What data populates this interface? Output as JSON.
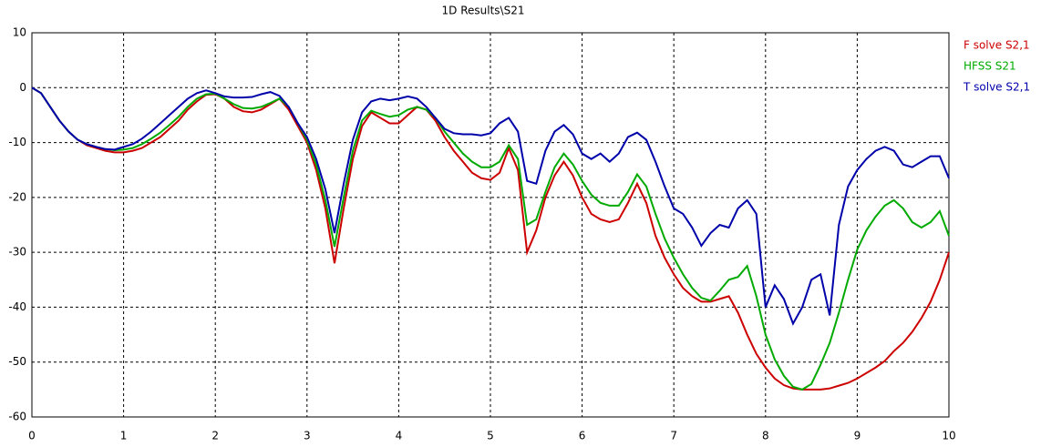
{
  "chart_data": {
    "type": "line",
    "title": "1D Results\\S21",
    "x": [
      0,
      0.1,
      0.2,
      0.3,
      0.4,
      0.5,
      0.6,
      0.7,
      0.8,
      0.9,
      1,
      1.1,
      1.2,
      1.3,
      1.4,
      1.5,
      1.6,
      1.7,
      1.8,
      1.9,
      2,
      2.1,
      2.2,
      2.3,
      2.4,
      2.5,
      2.6,
      2.7,
      2.8,
      2.9,
      3,
      3.1,
      3.2,
      3.3,
      3.4,
      3.5,
      3.6,
      3.7,
      3.8,
      3.9,
      4,
      4.1,
      4.2,
      4.3,
      4.4,
      4.5,
      4.6,
      4.7,
      4.8,
      4.9,
      5,
      5.1,
      5.2,
      5.3,
      5.4,
      5.5,
      5.6,
      5.7,
      5.8,
      5.9,
      6,
      6.1,
      6.2,
      6.3,
      6.4,
      6.5,
      6.6,
      6.7,
      6.8,
      6.9,
      7,
      7.1,
      7.2,
      7.3,
      7.4,
      7.5,
      7.6,
      7.7,
      7.8,
      7.9,
      8,
      8.1,
      8.2,
      8.3,
      8.4,
      8.5,
      8.6,
      8.7,
      8.8,
      8.9,
      9,
      9.1,
      9.2,
      9.3,
      9.4,
      9.5,
      9.6,
      9.7,
      9.8,
      9.9,
      10
    ],
    "series": [
      {
        "name": "F solve S2,1",
        "color": "#cc0000",
        "values": [
          0,
          -1,
          -3.5,
          -6,
          -8,
          -9.5,
          -10.5,
          -11,
          -11.5,
          -11.8,
          -11.8,
          -11.5,
          -11,
          -10,
          -9,
          -7.5,
          -6,
          -4,
          -2.5,
          -1.3,
          -1.2,
          -2,
          -3.5,
          -4.3,
          -4.5,
          -4,
          -3,
          -2,
          -4,
          -7,
          -10,
          -15,
          -22,
          -32,
          -22,
          -13,
          -7,
          -4.5,
          -5.5,
          -6.5,
          -6.5,
          -5,
          -3.5,
          -4,
          -6,
          -9,
          -11.5,
          -13.5,
          -15.5,
          -16.5,
          -16.8,
          -15.5,
          -11,
          -15,
          -30,
          -26,
          -20,
          -16,
          -13.5,
          -16,
          -20,
          -23,
          -24,
          -24.5,
          -24,
          -21,
          -17.5,
          -21,
          -27,
          -31,
          -34,
          -36.5,
          -38,
          -39,
          -39,
          -38.5,
          -38,
          -41,
          -45,
          -48.5,
          -51,
          -53,
          -54.2,
          -54.8,
          -55,
          -55,
          -55,
          -54.8,
          -54.3,
          -53.8,
          -53,
          -52,
          -51,
          -49.8,
          -48,
          -46.5,
          -44.5,
          -42,
          -39,
          -35,
          -30
        ]
      },
      {
        "name": "HFSS S21",
        "color": "#00aa00",
        "values": [
          0,
          -1,
          -3.5,
          -6,
          -8,
          -9.5,
          -10.3,
          -10.8,
          -11.2,
          -11.4,
          -11.3,
          -11,
          -10.3,
          -9.3,
          -8.2,
          -6.8,
          -5.3,
          -3.5,
          -2,
          -1.2,
          -1.1,
          -2,
          -3,
          -3.7,
          -3.8,
          -3.5,
          -2.8,
          -2,
          -3.5,
          -6.5,
          -9.5,
          -14,
          -20.5,
          -29,
          -20,
          -11.5,
          -6,
          -4.2,
          -4.8,
          -5.3,
          -5,
          -4,
          -3.5,
          -4,
          -5.5,
          -8,
          -10,
          -12,
          -13.5,
          -14.5,
          -14.5,
          -13.5,
          -10.5,
          -13,
          -25,
          -24,
          -19,
          -14.5,
          -12,
          -14,
          -17,
          -19.5,
          -21,
          -21.5,
          -21.5,
          -19,
          -15.8,
          -18,
          -23,
          -27.5,
          -31,
          -34,
          -36.5,
          -38.3,
          -38.8,
          -37,
          -35,
          -34.5,
          -32.5,
          -38,
          -45,
          -49.5,
          -52.5,
          -54.5,
          -55,
          -54,
          -50.5,
          -46.5,
          -41,
          -35,
          -29.5,
          -26,
          -23.5,
          -21.5,
          -20.5,
          -22,
          -24.5,
          -25.5,
          -24.5,
          -22.5,
          -27
        ]
      },
      {
        "name": "T solve S2,1",
        "color": "#0000aa",
        "values": [
          0,
          -1,
          -3.5,
          -6,
          -8,
          -9.5,
          -10.3,
          -10.8,
          -11.2,
          -11.3,
          -10.8,
          -10.3,
          -9.3,
          -8,
          -6.5,
          -5,
          -3.5,
          -2,
          -1,
          -0.5,
          -1,
          -1.6,
          -1.8,
          -1.8,
          -1.7,
          -1.2,
          -0.8,
          -1.5,
          -3.5,
          -6.5,
          -9,
          -13,
          -18.5,
          -26.5,
          -17.5,
          -9.5,
          -4.5,
          -2.5,
          -2,
          -2.3,
          -2,
          -1.6,
          -2,
          -3.5,
          -5.5,
          -7.5,
          -8.3,
          -8.5,
          -8.5,
          -8.7,
          -8.3,
          -6.5,
          -5.5,
          -8,
          -17,
          -17.5,
          -11.5,
          -8,
          -6.8,
          -8.5,
          -12,
          -13,
          -12,
          -13.5,
          -12,
          -9,
          -8.2,
          -9.5,
          -13.5,
          -18,
          -22,
          -23,
          -25.5,
          -28.8,
          -26.5,
          -25,
          -25.5,
          -22,
          -20.5,
          -23,
          -40,
          -36,
          -38.5,
          -43,
          -40,
          -35,
          -34,
          -41.5,
          -25,
          -18,
          -15,
          -13,
          -11.5,
          -10.8,
          -11.5,
          -14,
          -14.5,
          -13.5,
          -12.5,
          -12.5,
          -16.5
        ]
      }
    ],
    "xlim": [
      0,
      10
    ],
    "ylim": [
      -60,
      10
    ],
    "xticks": [
      0,
      1,
      2,
      3,
      4,
      5,
      6,
      7,
      8,
      9,
      10
    ],
    "yticks": [
      -60,
      -50,
      -40,
      -30,
      -20,
      -10,
      0,
      10
    ],
    "grid": true,
    "legend": "right"
  }
}
